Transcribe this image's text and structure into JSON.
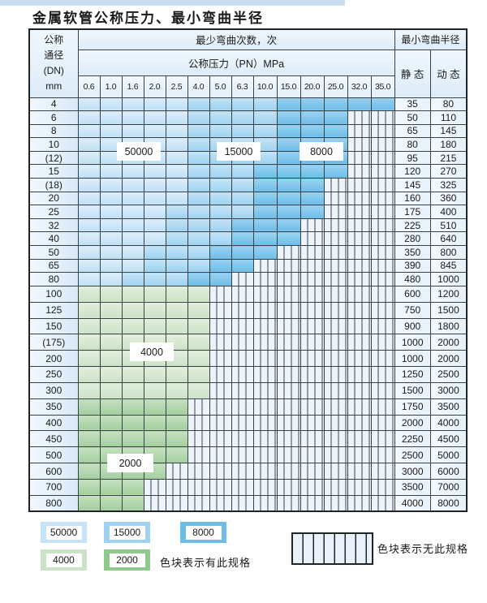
{
  "title": "金属软管公称压力、最小弯曲半径",
  "table_headers": {
    "dn_lines": "公称\n通径\n(DN)\nmm",
    "bend_cycles": "最少弯曲次数，次",
    "pressure": "公称压力（PN）MPa",
    "radius": "最小弯曲半径",
    "static": "静 态",
    "dynamic": "动 态"
  },
  "region_labels": {
    "b50000": "50000",
    "b15000": "15000",
    "b8000": "8000",
    "g4000": "4000",
    "g2000": "2000"
  },
  "legend": {
    "items": [
      {
        "label": "50000",
        "code": "L"
      },
      {
        "label": "15000",
        "code": "M"
      },
      {
        "label": "8000",
        "code": "D"
      },
      {
        "label": "4000",
        "code": "4"
      },
      {
        "label": "2000",
        "code": "2"
      }
    ],
    "has_spec_label": "色块表示有此规格",
    "no_spec_label": "色块表示无此规格"
  },
  "colors": {
    "cycles_50000": "#bfe0f5",
    "cycles_15000": "#9ed2f0",
    "cycles_8000": "#6cbde8",
    "cycles_4000": "#cbe3c6",
    "cycles_2000": "#a2cf9f",
    "hatch_bg": "#edf4fb",
    "grid": "#3a4145"
  },
  "chart_data": {
    "type": "table",
    "title": "金属软管公称压力、最小弯曲半径",
    "row_axis": "公称通径(DN) mm",
    "column_axis": "公称压力（PN）MPa",
    "cell_meaning": "最少弯曲次数，次 (L=50000, M=15000, D=8000, 4=4000, 2=2000, H=无此规格)",
    "pressure_columns": [
      "0.6",
      "1.0",
      "1.6",
      "2.0",
      "2.5",
      "4.0",
      "5.0",
      "6.3",
      "10.0",
      "15.0",
      "20.0",
      "25.0",
      "32.0",
      "35.0"
    ],
    "radius_columns": [
      "静 态",
      "动 态"
    ],
    "rows": [
      {
        "dn": "4",
        "cells": "LLLLLMMMMDDDDD",
        "static": "35",
        "dynamic": "80"
      },
      {
        "dn": "6",
        "cells": "LLLLLMMMMDDDHH",
        "static": "50",
        "dynamic": "110"
      },
      {
        "dn": "8",
        "cells": "LLLLLMMMMDDDHH",
        "static": "65",
        "dynamic": "145"
      },
      {
        "dn": "10",
        "cells": "LLLLLMMMMDDDHH",
        "static": "80",
        "dynamic": "180"
      },
      {
        "dn": "(12)",
        "cells": "LLLLLMMMMDDDHH",
        "static": "95",
        "dynamic": "215"
      },
      {
        "dn": "15",
        "cells": "LLLLLMMMDDDDHH",
        "static": "120",
        "dynamic": "270"
      },
      {
        "dn": "(18)",
        "cells": "LLLLLMMMDDDHHH",
        "static": "145",
        "dynamic": "325"
      },
      {
        "dn": "20",
        "cells": "LLLLLMMMDDDHHH",
        "static": "160",
        "dynamic": "360"
      },
      {
        "dn": "25",
        "cells": "LLLLMMMMDDDHHH",
        "static": "175",
        "dynamic": "400"
      },
      {
        "dn": "32",
        "cells": "LLLLMMMDDDHHHH",
        "static": "225",
        "dynamic": "510"
      },
      {
        "dn": "40",
        "cells": "LLLLMMMDDDHHHH",
        "static": "280",
        "dynamic": "640"
      },
      {
        "dn": "50",
        "cells": "LLLMMMDDDHHHHH",
        "static": "350",
        "dynamic": "800"
      },
      {
        "dn": "65",
        "cells": "LLLMMMDDHHHHHH",
        "static": "390",
        "dynamic": "845"
      },
      {
        "dn": "80",
        "cells": "LLMMMDDHHHHHHH",
        "static": "480",
        "dynamic": "1000"
      },
      {
        "dn": "100",
        "cells": "444444HHHHHHHH",
        "static": "600",
        "dynamic": "1200"
      },
      {
        "dn": "125",
        "cells": "444444HHHHHHHH",
        "static": "750",
        "dynamic": "1500"
      },
      {
        "dn": "150",
        "cells": "444444HHHHHHHH",
        "static": "900",
        "dynamic": "1800"
      },
      {
        "dn": "(175)",
        "cells": "444444HHHHHHHH",
        "static": "1000",
        "dynamic": "2000"
      },
      {
        "dn": "200",
        "cells": "444444HHHHHHHH",
        "static": "1000",
        "dynamic": "2000"
      },
      {
        "dn": "250",
        "cells": "444444HHHHHHHH",
        "static": "1250",
        "dynamic": "2500"
      },
      {
        "dn": "300",
        "cells": "444444HHHHHHHH",
        "static": "1500",
        "dynamic": "3000"
      },
      {
        "dn": "350",
        "cells": "22222HHHHHHHHH",
        "static": "1750",
        "dynamic": "3500"
      },
      {
        "dn": "400",
        "cells": "22222HHHHHHHHH",
        "static": "2000",
        "dynamic": "4000"
      },
      {
        "dn": "450",
        "cells": "22222HHHHHHHHH",
        "static": "2250",
        "dynamic": "4500"
      },
      {
        "dn": "500",
        "cells": "22222HHHHHHHHH",
        "static": "2500",
        "dynamic": "5000"
      },
      {
        "dn": "600",
        "cells": "2222HHHHHHHHHH",
        "static": "3000",
        "dynamic": "6000"
      },
      {
        "dn": "700",
        "cells": "222HHHHHHHHHHH",
        "static": "3500",
        "dynamic": "7000"
      },
      {
        "dn": "800",
        "cells": "222HHHHHHHHHHH",
        "static": "4000",
        "dynamic": "8000"
      }
    ]
  }
}
